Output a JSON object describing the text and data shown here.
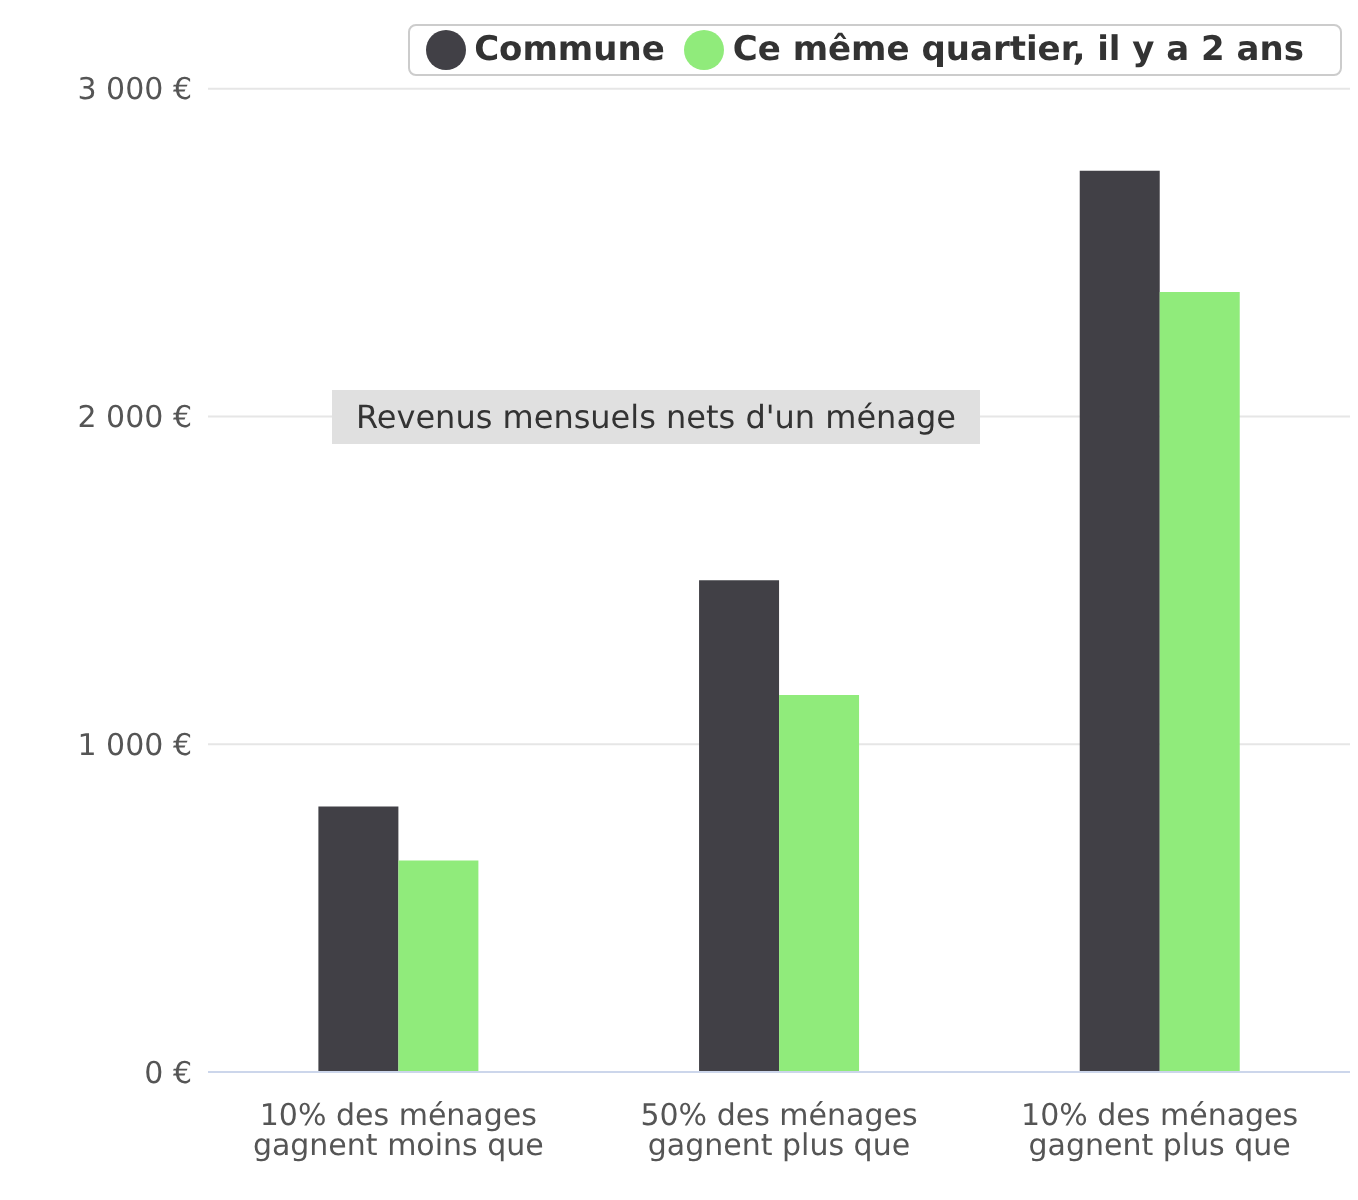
{
  "chart_data": {
    "type": "bar",
    "categories": [
      "10% des ménages gagnent moins que",
      "50% des ménages gagnent plus que",
      "10% des ménages gagnent plus que"
    ],
    "series": [
      {
        "name": "Commune",
        "color": "#414046",
        "values": [
          810,
          1500,
          2750
        ]
      },
      {
        "name": "Ce même quartier, il y a 2 ans",
        "color": "#90eb7b",
        "values": [
          645,
          1150,
          2380
        ]
      }
    ],
    "ylim": [
      0,
      3000
    ],
    "yticks": [
      {
        "value": 0,
        "label": "0 €"
      },
      {
        "value": 1000,
        "label": "1 000 €"
      },
      {
        "value": 2000,
        "label": "2 000 €"
      },
      {
        "value": 3000,
        "label": "3 000 €"
      }
    ],
    "grid": "y",
    "legend": "top right",
    "annotations": [
      "Revenus mensuels nets d'un ménage"
    ]
  }
}
